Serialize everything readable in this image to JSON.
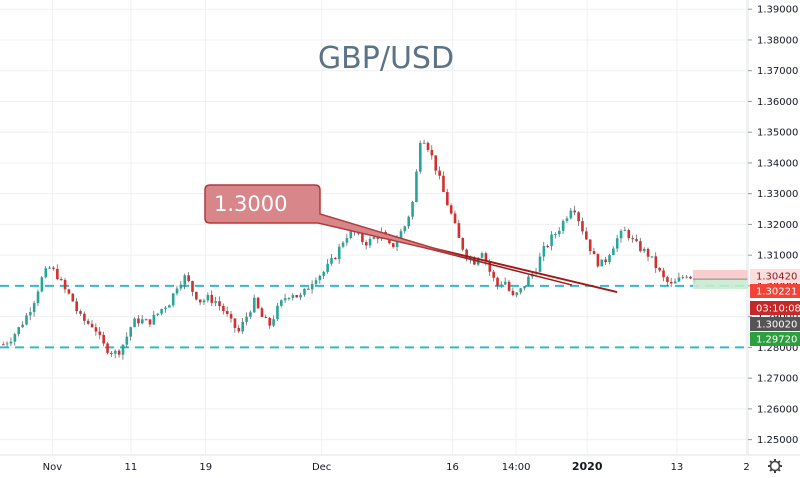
{
  "chart_data": {
    "type": "candlestick",
    "title": "GBP/USD",
    "y_axis": {
      "position": "right",
      "ylim": [
        1.245,
        1.393
      ],
      "ticks": [
        "1.39000",
        "1.38000",
        "1.37000",
        "1.36000",
        "1.35000",
        "1.34000",
        "1.33000",
        "1.32000",
        "1.31000",
        "1.30000",
        "1.29000",
        "1.28000",
        "1.27000",
        "1.26000",
        "1.25000"
      ]
    },
    "x_axis": {
      "ticks": [
        "Nov",
        "11",
        "19",
        "Dec",
        "16",
        "14:00",
        "2020",
        "13",
        "2"
      ],
      "bold_ticks": [
        "2020"
      ]
    },
    "grid": true,
    "price_path": [
      [
        1.281,
        1.283
      ],
      [
        1.286,
        1.29
      ],
      [
        1.295,
        1.302
      ],
      [
        1.306,
        1.304
      ],
      [
        1.299,
        1.296
      ],
      [
        1.29,
        1.288
      ],
      [
        1.287,
        1.281
      ],
      [
        1.279,
        1.278
      ],
      [
        1.282,
        1.288
      ],
      [
        1.289,
        1.288
      ],
      [
        1.29,
        1.293
      ],
      [
        1.295,
        1.301
      ],
      [
        1.303,
        1.298
      ],
      [
        1.295,
        1.296
      ],
      [
        1.295,
        1.292
      ],
      [
        1.288,
        1.285
      ],
      [
        1.29,
        1.295
      ],
      [
        1.29,
        1.287
      ],
      [
        1.292,
        1.296
      ],
      [
        1.298,
        1.296
      ],
      [
        1.299,
        1.303
      ],
      [
        1.304,
        1.307
      ],
      [
        1.311,
        1.316
      ],
      [
        1.318,
        1.315
      ],
      [
        1.314,
        1.316
      ],
      [
        1.317,
        1.312
      ],
      [
        1.316,
        1.32
      ],
      [
        1.328,
        1.35
      ],
      [
        1.345,
        1.338
      ],
      [
        1.33,
        1.323
      ],
      [
        1.315,
        1.31
      ],
      [
        1.308,
        1.312
      ],
      [
        1.305,
        1.3
      ],
      [
        1.302,
        1.296
      ],
      [
        1.298,
        1.302
      ],
      [
        1.305,
        1.311
      ],
      [
        1.315,
        1.318
      ],
      [
        1.322,
        1.327
      ],
      [
        1.32,
        1.314
      ],
      [
        1.308,
        1.307
      ],
      [
        1.312,
        1.316
      ],
      [
        1.318,
        1.314
      ],
      [
        1.312,
        1.31
      ],
      [
        1.306,
        1.302
      ],
      [
        1.3,
        1.302
      ],
      [
        1.304,
        1.3022
      ]
    ],
    "horizontal_levels": [
      1.304,
      1.3,
      1.28
    ],
    "trendline": {
      "from": [
        1.3175,
        0.488
      ],
      "to": [
        1.298,
        0.825
      ]
    },
    "callout": {
      "text": "1.3000"
    },
    "position_box": {
      "top": 1.3052,
      "entry": 1.3022,
      "bottom": 1.299
    },
    "price_labels": [
      {
        "value": 1.3042,
        "text": "1.30420",
        "kind": "target"
      },
      {
        "value": 1.30221,
        "text": "1.30221",
        "kind": "current"
      },
      {
        "value": 1.3014,
        "text": "03:10:08",
        "kind": "countdown"
      },
      {
        "value": 1.3002,
        "text": "1.30020",
        "kind": "bid"
      },
      {
        "value": 1.2972,
        "text": "1.29720",
        "kind": "stop"
      }
    ],
    "colors": {
      "up": "#26a69a",
      "down": "#d32f2f",
      "level": "#35b8c8",
      "trend": "#9e1b1b",
      "callout_fill": "#d9868a",
      "callout_stroke": "#b23a3a",
      "grid": "#eef0f3",
      "axis_text": "#131722",
      "title": "#5b7384"
    },
    "icons": {
      "settings": "gear-icon"
    }
  }
}
